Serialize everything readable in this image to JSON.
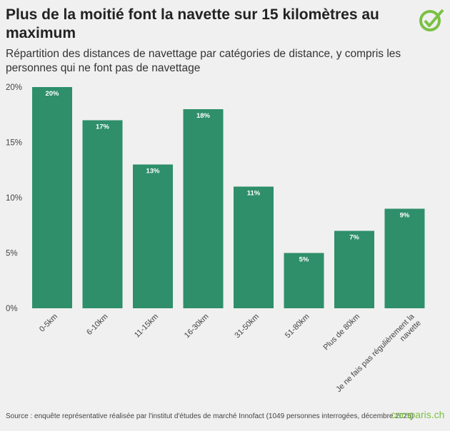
{
  "title": "Plus de la moitié font la navette sur 15 kilomètres au maximum",
  "subtitle": "Répartition des distances de navettage par catégories de distance, y compris les personnes qui ne font pas de navettage",
  "source": "Source : enquête représentative réalisée par l'institut d'études de marché Innofact (1049 personnes interrogées, décembre 2025)",
  "brand": "comparis.ch",
  "colors": {
    "bar": "#2e8f6a",
    "brand": "#7ac143"
  },
  "chart_data": {
    "type": "bar",
    "categories": [
      "0-5km",
      "6-10km",
      "11-15km",
      "16-30km",
      "31-50km",
      "51-80km",
      "Plus de 80km",
      "Je ne fais pas régulièrement la navette"
    ],
    "values": [
      20,
      17,
      13,
      18,
      11,
      5,
      7,
      9
    ],
    "data_labels": [
      "20%",
      "17%",
      "13%",
      "18%",
      "11%",
      "5%",
      "7%",
      "9%"
    ],
    "yticks": [
      "0%",
      "5%",
      "10%",
      "15%",
      "20%"
    ],
    "ytick_values": [
      0,
      5,
      10,
      15,
      20
    ],
    "ylim": [
      0,
      20
    ],
    "grid": false,
    "xlabel": "",
    "ylabel": ""
  }
}
